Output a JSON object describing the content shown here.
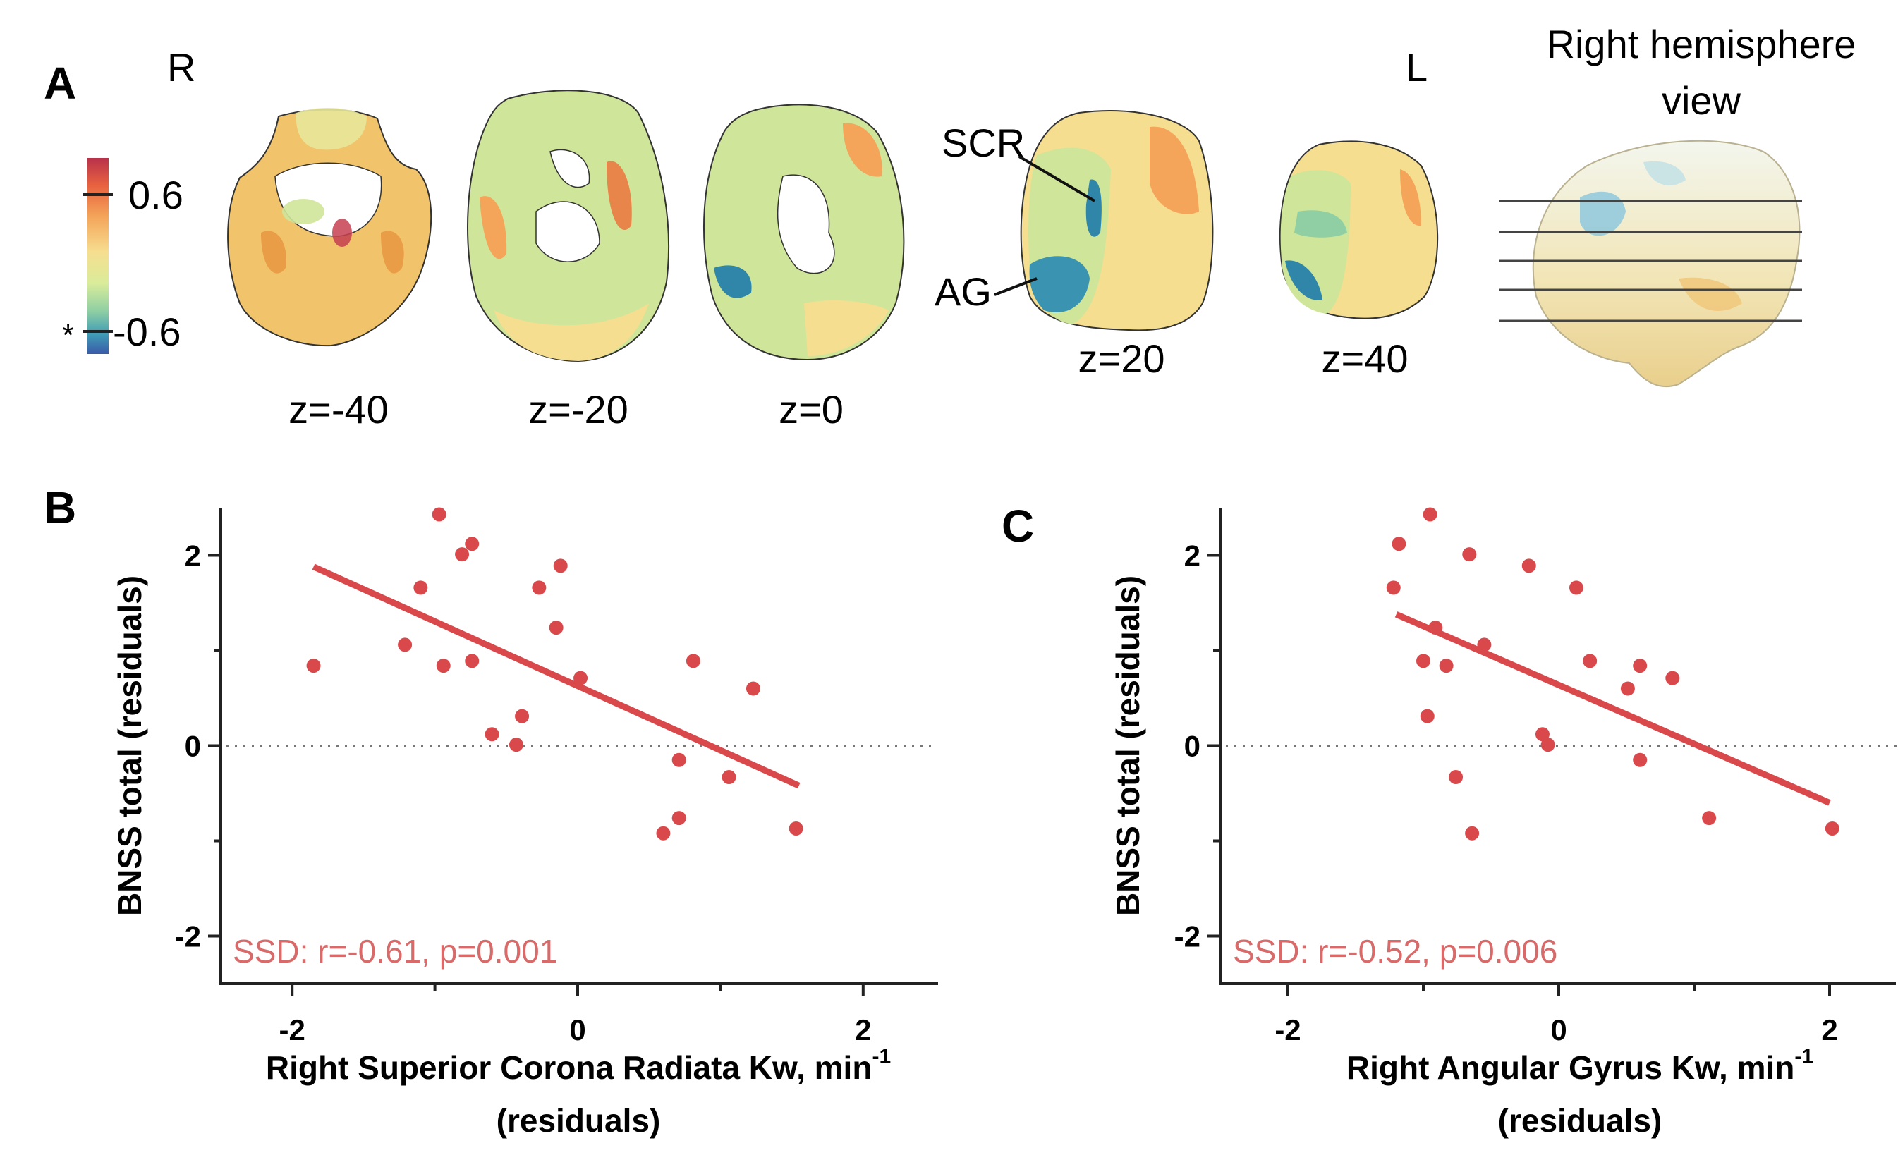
{
  "panel_a": {
    "letter": "A",
    "orient_r": "R",
    "orient_l": "L",
    "colorbar": {
      "max_label": "0.6",
      "min_label": "-0.6",
      "star": "*",
      "colors": [
        "#b8314a",
        "#e8623f",
        "#f4a55a",
        "#f6de90",
        "#d9ec9a",
        "#8fcfa3",
        "#3f9cb6",
        "#3a5aa8"
      ]
    },
    "slices": [
      {
        "label": "z=-40"
      },
      {
        "label": "z=-20"
      },
      {
        "label": "z=0"
      },
      {
        "label": "z=20"
      },
      {
        "label": "z=40"
      }
    ],
    "region_labels": {
      "scr": "SCR",
      "ag": "AG"
    },
    "hemisphere_title_line1": "Right hemisphere",
    "hemisphere_title_line2": "view"
  },
  "chart_data": [
    {
      "type": "scatter",
      "panel": "B",
      "xlabel_line1": "Right Superior Corona Radiata Kw, min",
      "xlabel_sup": "-1",
      "xlabel_line2": "(residuals)",
      "ylabel": "BNSS total (residuals)",
      "xlim": [
        -2.5,
        2.5
      ],
      "ylim": [
        -2.5,
        2.5
      ],
      "x_ticks": [
        -2,
        0,
        2
      ],
      "y_ticks": [
        -2,
        0,
        2
      ],
      "annotation": "SSD: r=-0.61, p=0.001",
      "reference_line_y": 0,
      "fit": {
        "x": [
          -1.85,
          1.55
        ],
        "y": [
          1.88,
          -0.42
        ]
      },
      "points": [
        {
          "x": -1.85,
          "y": 0.84
        },
        {
          "x": -1.21,
          "y": 1.06
        },
        {
          "x": -1.1,
          "y": 1.66
        },
        {
          "x": -0.97,
          "y": 2.43
        },
        {
          "x": -0.94,
          "y": 0.84
        },
        {
          "x": -0.81,
          "y": 2.01
        },
        {
          "x": -0.74,
          "y": 2.12
        },
        {
          "x": -0.74,
          "y": 0.89
        },
        {
          "x": -0.6,
          "y": 0.12
        },
        {
          "x": -0.43,
          "y": 0.01
        },
        {
          "x": -0.39,
          "y": 0.31
        },
        {
          "x": -0.27,
          "y": 1.66
        },
        {
          "x": -0.15,
          "y": 1.24
        },
        {
          "x": -0.12,
          "y": 1.89
        },
        {
          "x": 0.02,
          "y": 0.71
        },
        {
          "x": 0.6,
          "y": -0.92
        },
        {
          "x": 0.71,
          "y": -0.15
        },
        {
          "x": 0.71,
          "y": -0.76
        },
        {
          "x": 0.81,
          "y": 0.89
        },
        {
          "x": 1.06,
          "y": -0.33
        },
        {
          "x": 1.23,
          "y": 0.6
        },
        {
          "x": 1.53,
          "y": -0.87
        }
      ]
    },
    {
      "type": "scatter",
      "panel": "C",
      "xlabel_line1": "Right Angular Gyrus Kw, min",
      "xlabel_sup": "-1",
      "xlabel_line2": "(residuals)",
      "ylabel": "BNSS total (residuals)",
      "xlim": [
        -2.5,
        2.5
      ],
      "ylim": [
        -2.5,
        2.5
      ],
      "x_ticks": [
        -2,
        0,
        2
      ],
      "y_ticks": [
        -2,
        0,
        2
      ],
      "annotation": "SSD: r=-0.52, p=0.006",
      "reference_line_y": 0,
      "fit": {
        "x": [
          -1.2,
          2.0
        ],
        "y": [
          1.38,
          -0.6
        ]
      },
      "points": [
        {
          "x": -1.22,
          "y": 1.66
        },
        {
          "x": -1.18,
          "y": 2.12
        },
        {
          "x": -0.95,
          "y": 2.43
        },
        {
          "x": -1.0,
          "y": 0.89
        },
        {
          "x": -0.97,
          "y": 0.31
        },
        {
          "x": -0.91,
          "y": 1.24
        },
        {
          "x": -0.83,
          "y": 0.84
        },
        {
          "x": -0.76,
          "y": -0.33
        },
        {
          "x": -0.66,
          "y": 2.01
        },
        {
          "x": -0.64,
          "y": -0.92
        },
        {
          "x": -0.55,
          "y": 1.06
        },
        {
          "x": -0.22,
          "y": 1.89
        },
        {
          "x": -0.12,
          "y": 0.12
        },
        {
          "x": -0.08,
          "y": 0.01
        },
        {
          "x": 0.13,
          "y": 1.66
        },
        {
          "x": 0.23,
          "y": 0.89
        },
        {
          "x": 0.51,
          "y": 0.6
        },
        {
          "x": 0.6,
          "y": -0.15
        },
        {
          "x": 0.6,
          "y": 0.84
        },
        {
          "x": 0.84,
          "y": 0.71
        },
        {
          "x": 1.11,
          "y": -0.76
        },
        {
          "x": 2.02,
          "y": -0.87
        }
      ]
    }
  ]
}
